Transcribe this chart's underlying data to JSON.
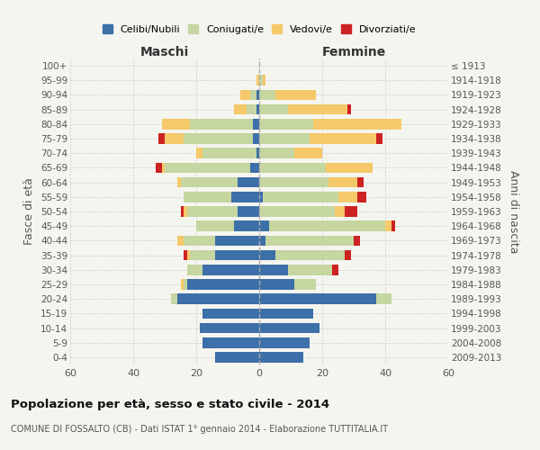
{
  "age_groups": [
    "0-4",
    "5-9",
    "10-14",
    "15-19",
    "20-24",
    "25-29",
    "30-34",
    "35-39",
    "40-44",
    "45-49",
    "50-54",
    "55-59",
    "60-64",
    "65-69",
    "70-74",
    "75-79",
    "80-84",
    "85-89",
    "90-94",
    "95-99",
    "100+"
  ],
  "birth_years": [
    "2009-2013",
    "2004-2008",
    "1999-2003",
    "1994-1998",
    "1989-1993",
    "1984-1988",
    "1979-1983",
    "1974-1978",
    "1969-1973",
    "1964-1968",
    "1959-1963",
    "1954-1958",
    "1949-1953",
    "1944-1948",
    "1939-1943",
    "1934-1938",
    "1929-1933",
    "1924-1928",
    "1919-1923",
    "1914-1918",
    "≤ 1913"
  ],
  "colors": {
    "celibe": "#3d6fa8",
    "coniugato": "#c5d6a0",
    "vedovo": "#f5c96a",
    "divorziato": "#cc2222"
  },
  "maschi": {
    "celibe": [
      14,
      18,
      19,
      18,
      26,
      23,
      18,
      14,
      14,
      8,
      7,
      9,
      7,
      3,
      1,
      2,
      2,
      1,
      1,
      0,
      0
    ],
    "coniugato": [
      0,
      0,
      0,
      0,
      2,
      1,
      5,
      8,
      10,
      12,
      16,
      15,
      18,
      27,
      17,
      22,
      20,
      3,
      2,
      0,
      0
    ],
    "vedovo": [
      0,
      0,
      0,
      0,
      0,
      1,
      0,
      1,
      2,
      0,
      1,
      0,
      1,
      1,
      2,
      6,
      9,
      4,
      3,
      1,
      0
    ],
    "divorziato": [
      0,
      0,
      0,
      0,
      0,
      0,
      0,
      1,
      0,
      0,
      1,
      0,
      0,
      2,
      0,
      2,
      0,
      0,
      0,
      0,
      0
    ]
  },
  "femmine": {
    "nubile": [
      14,
      16,
      19,
      17,
      37,
      11,
      9,
      5,
      2,
      3,
      0,
      1,
      0,
      0,
      0,
      0,
      0,
      0,
      0,
      0,
      0
    ],
    "coniugata": [
      0,
      0,
      0,
      0,
      5,
      7,
      14,
      22,
      28,
      37,
      24,
      24,
      22,
      21,
      11,
      16,
      17,
      9,
      5,
      1,
      0
    ],
    "vedova": [
      0,
      0,
      0,
      0,
      0,
      0,
      0,
      0,
      0,
      2,
      3,
      6,
      9,
      15,
      9,
      21,
      28,
      19,
      13,
      1,
      0
    ],
    "divorziata": [
      0,
      0,
      0,
      0,
      0,
      0,
      2,
      2,
      2,
      1,
      4,
      3,
      2,
      0,
      0,
      2,
      0,
      1,
      0,
      0,
      0
    ]
  },
  "xlim": 60,
  "title": "Popolazione per età, sesso e stato civile - 2014",
  "subtitle": "COMUNE DI FOSSALTO (CB) - Dati ISTAT 1° gennaio 2014 - Elaborazione TUTTITALIA.IT",
  "ylabel_left": "Fasce di età",
  "ylabel_right": "Anni di nascita",
  "xlabel_maschi": "Maschi",
  "xlabel_femmine": "Femmine",
  "legend_labels": [
    "Celibi/Nubili",
    "Coniugati/e",
    "Vedovi/e",
    "Divorziati/e"
  ],
  "background_color": "#f5f5f0",
  "bar_height": 0.72
}
